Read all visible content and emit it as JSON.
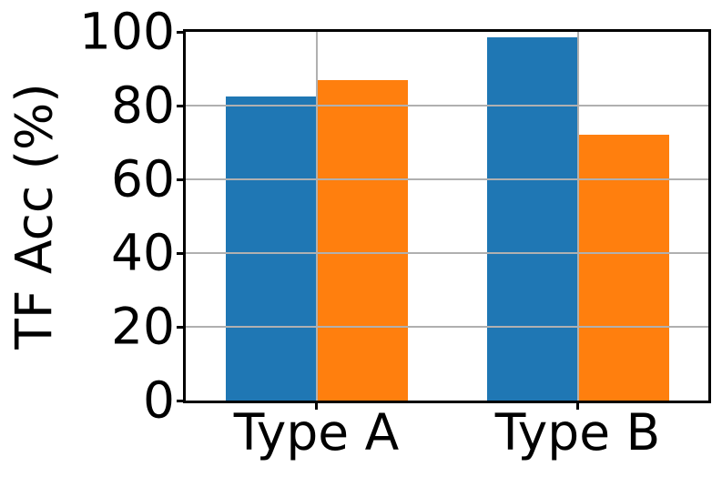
{
  "figure": {
    "background": "#ffffff"
  },
  "chart_data": {
    "type": "bar",
    "categories": [
      "Type A",
      "Type B"
    ],
    "series": [
      {
        "name": "blue-series",
        "color": "#1f77b4",
        "values": [
          82.5,
          98.5
        ]
      },
      {
        "name": "orange-series",
        "color": "#ff7f0e",
        "values": [
          87.0,
          72.0
        ]
      }
    ],
    "title": "",
    "xlabel": "",
    "ylabel": "TF Acc (%)",
    "yticks": [
      0,
      20,
      40,
      60,
      80,
      100
    ],
    "ylim": [
      0,
      100
    ],
    "grid": true,
    "grid_color": "#b0b0b0",
    "axis_color": "#000000",
    "legend": false
  }
}
